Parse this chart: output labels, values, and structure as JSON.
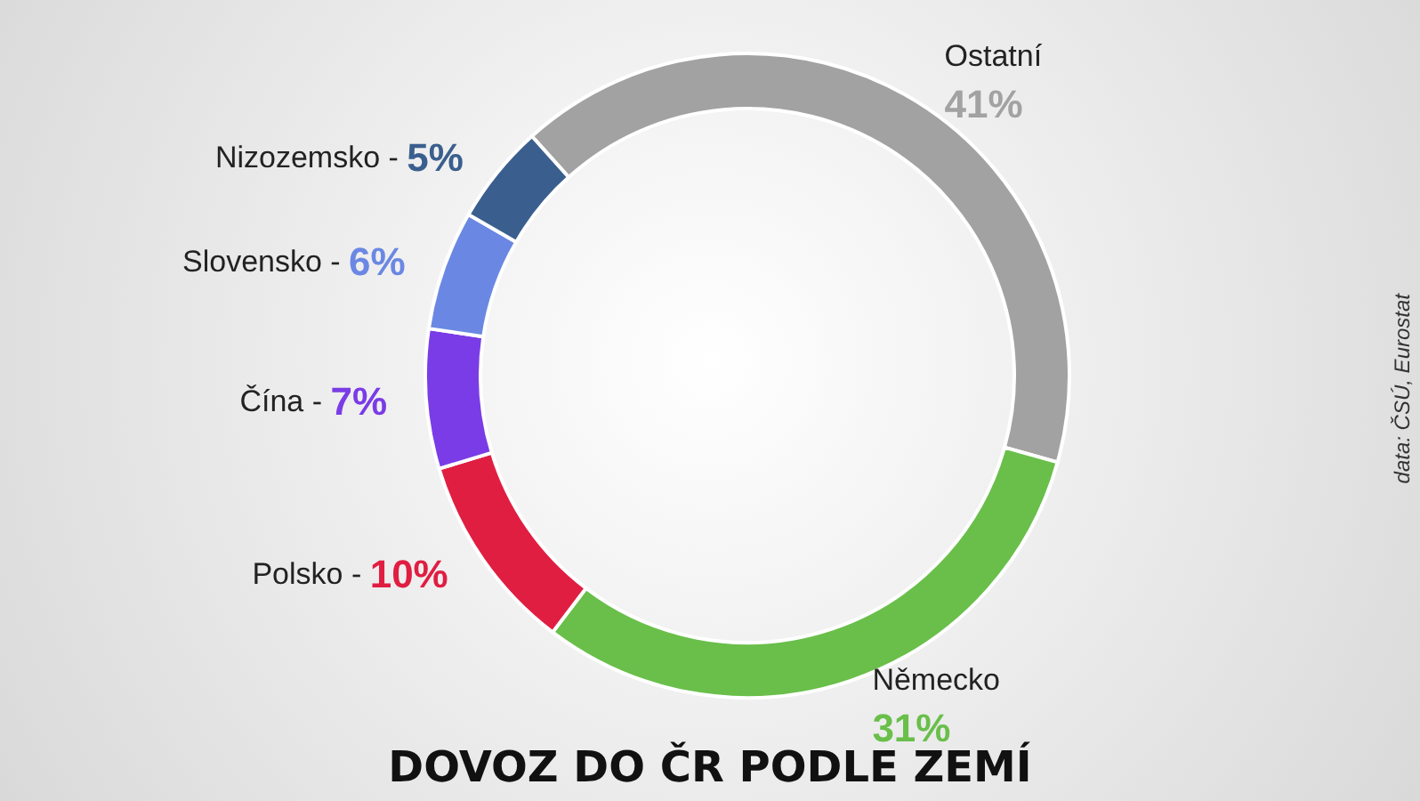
{
  "chart_data": {
    "type": "donut",
    "title": "DOVOZ DO ČR PODLE ZEMÍ",
    "categories": [
      "Ostatní",
      "Německo",
      "Polsko -",
      "Čína -",
      "Slovensko -",
      "Nizozemsko -"
    ],
    "values": [
      41,
      31,
      10,
      7,
      6,
      5
    ],
    "value_labels": [
      "41%",
      "31%",
      "10%",
      "7%",
      "6%",
      "5%"
    ],
    "colors": [
      "#a2a2a2",
      "#69bf4a",
      "#e01e42",
      "#7a3ce6",
      "#6a88e3",
      "#3a5f8e"
    ],
    "annotations": [
      "data: ČSÚ, Eurostat"
    ],
    "legend": false
  }
}
